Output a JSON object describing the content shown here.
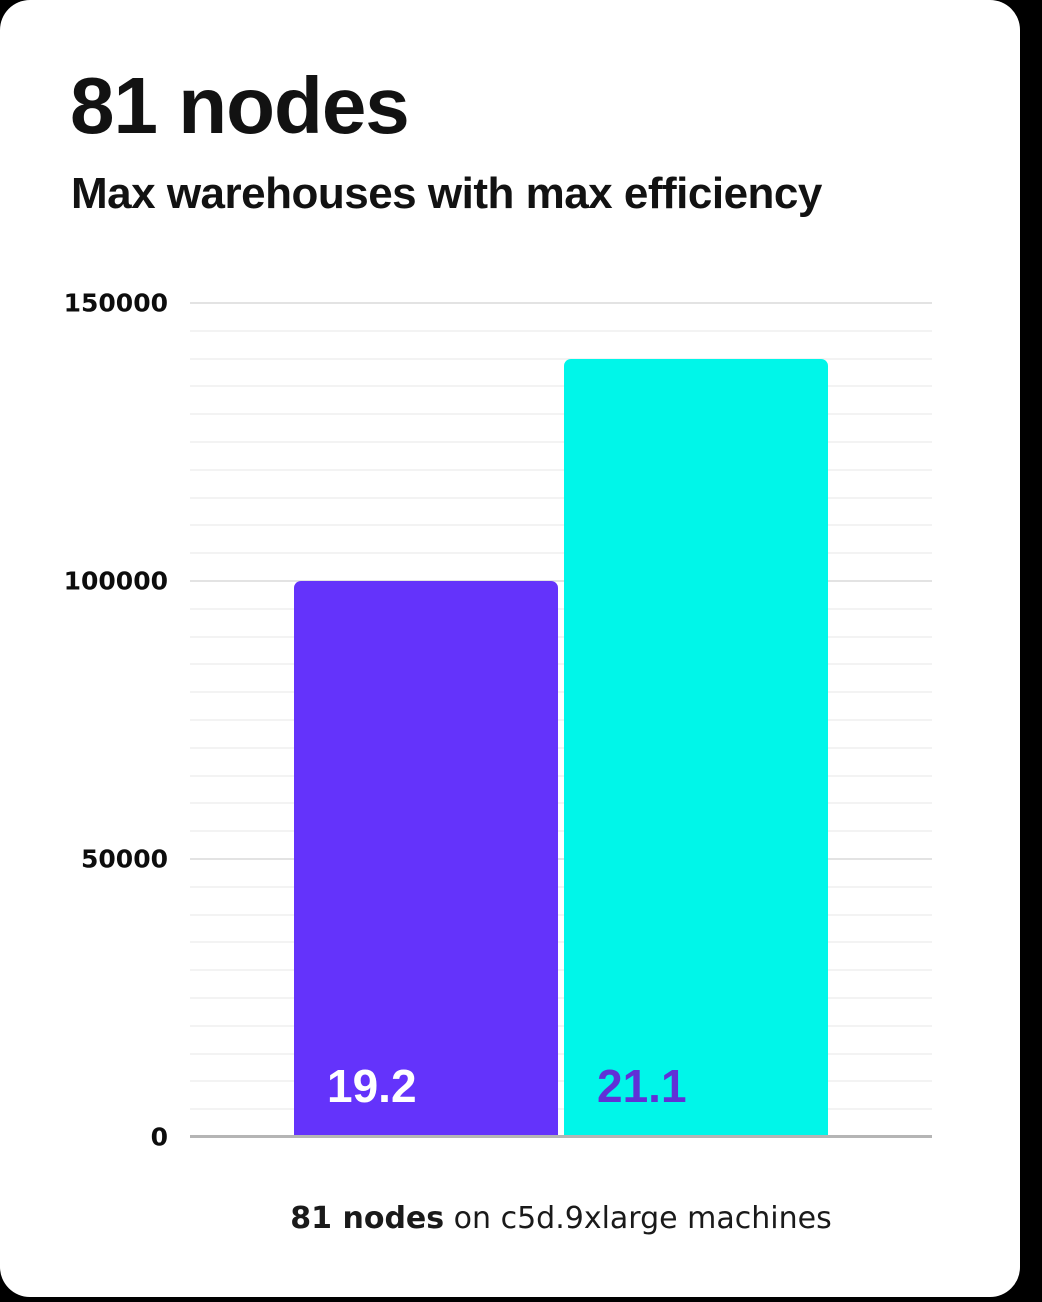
{
  "page": {
    "background": "#000000",
    "card_background": "#ffffff"
  },
  "header": {
    "title": "81 nodes",
    "subtitle": "Max warehouses with max efficiency"
  },
  "chart_data": {
    "type": "bar",
    "title": "81 nodes",
    "subtitle": "Max warehouses with max efficiency",
    "categories": [
      "19.2",
      "21.1"
    ],
    "values": [
      100000,
      140000
    ],
    "bar_colors": [
      "#6433fb",
      "#00f6e9"
    ],
    "bar_label_colors": [
      "#ffffff",
      "#6130d6"
    ],
    "xlabel": "",
    "ylabel": "",
    "ylim": [
      0,
      150000
    ],
    "yticks": [
      {
        "value": 0,
        "label": "0"
      },
      {
        "value": 50000,
        "label": "50000"
      },
      {
        "value": 100000,
        "label": "100000"
      },
      {
        "value": 150000,
        "label": "150000"
      }
    ],
    "minor_gridline_step": 5000,
    "major_gridline_step": 50000,
    "grid": true,
    "legend_position": "none",
    "gridline_minor_color": "#f3f3f3",
    "gridline_major_color": "#e3e3e3",
    "baseline_color": "#b5b5b5"
  },
  "footer": {
    "caption_bold": "81 nodes",
    "caption_rest": " on c5d.9xlarge machines"
  }
}
